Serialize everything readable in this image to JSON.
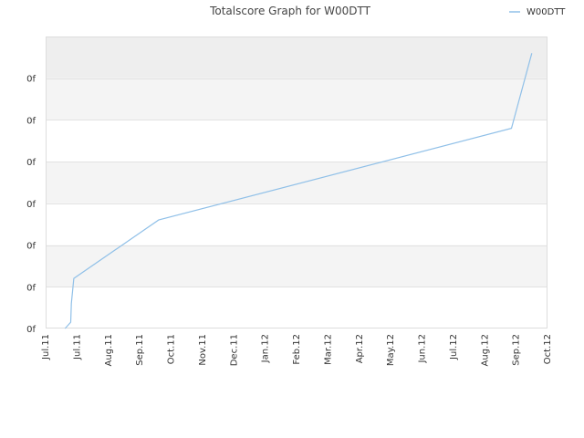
{
  "chart_data": {
    "type": "line",
    "title": "Totalscore Graph for W00DTT",
    "xlabel": "",
    "ylabel": "",
    "legend": {
      "placement": "top-right",
      "entries": [
        "W00DTT"
      ]
    },
    "grid": true,
    "x_ticks": [
      "Jul.11",
      "Jul.11",
      "Aug.11",
      "Sep.11",
      "Oct.11",
      "Nov.11",
      "Dec.11",
      "Jan.12",
      "Feb.12",
      "Mar.12",
      "Apr.12",
      "May.12",
      "Jun.12",
      "Jul.12",
      "Aug.12",
      "Sep.12",
      "Oct.12"
    ],
    "y_ticks": [
      "0f",
      "0f",
      "0f",
      "0f",
      "0f",
      "0f",
      "0f"
    ],
    "xlim": [
      0,
      16
    ],
    "ylim": [
      0,
      7
    ],
    "series": [
      {
        "name": "W00DTT",
        "color": "#90c0e8",
        "x": [
          0.62,
          0.8,
          0.82,
          0.9,
          3.6,
          14.85,
          15.5
        ],
        "y": [
          0.0,
          0.15,
          0.6,
          1.2,
          2.6,
          4.8,
          6.6
        ]
      }
    ]
  }
}
